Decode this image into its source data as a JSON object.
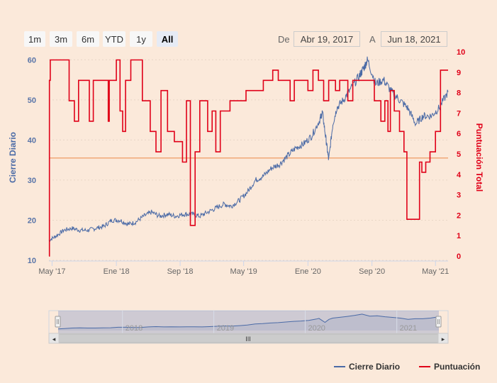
{
  "range_selector": {
    "buttons": [
      {
        "label": "1m",
        "active": false
      },
      {
        "label": "3m",
        "active": false
      },
      {
        "label": "6m",
        "active": false
      },
      {
        "label": "YTD",
        "active": false
      },
      {
        "label": "1y",
        "active": false
      },
      {
        "label": "All",
        "active": true
      }
    ],
    "from_label": "De",
    "from_value": "Abr 19, 2017",
    "to_label": "A",
    "to_value": "Jun 18, 2021"
  },
  "navigator": {
    "labels": [
      "2018",
      "2019",
      "2020",
      "2021"
    ],
    "scroll_grip": "III",
    "left_arrow": "◂",
    "right_arrow": "▸"
  },
  "colors": {
    "background": "#fbe9da",
    "price_line": "#4a6aa6",
    "score_line": "#e00018",
    "plot_line": "#f0a878"
  },
  "chart_data": {
    "type": "line",
    "x_axis": {
      "type": "datetime",
      "range": [
        "2017-04-19",
        "2021-06-18"
      ],
      "tick_labels": [
        "May '17",
        "Ene '18",
        "Sep '18",
        "May '19",
        "Ene '20",
        "Sep '20",
        "May '21"
      ]
    },
    "y_axis_left": {
      "title": "Cierre Diario",
      "range": [
        10,
        62
      ],
      "ticks": [
        10,
        20,
        30,
        40,
        50,
        60
      ]
    },
    "y_axis_right": {
      "title": "Puntuación Total",
      "range": [
        0,
        10
      ],
      "ticks": [
        0,
        1,
        2,
        3,
        4,
        5,
        6,
        7,
        8,
        9,
        10
      ]
    },
    "plot_lines": [
      {
        "axis": "right",
        "value": 4.8
      }
    ],
    "legend": {
      "position": "bottom-right"
    },
    "series": [
      {
        "name": "Cierre Diario",
        "axis": "left",
        "points": [
          [
            "2017-04-19",
            15
          ],
          [
            "2017-05-15",
            16
          ],
          [
            "2017-06-15",
            17.5
          ],
          [
            "2017-07-15",
            18
          ],
          [
            "2017-08-15",
            17.5
          ],
          [
            "2017-09-15",
            17.5
          ],
          [
            "2017-10-15",
            18
          ],
          [
            "2017-11-15",
            18.5
          ],
          [
            "2017-12-15",
            20
          ],
          [
            "2018-01-15",
            20
          ],
          [
            "2018-02-15",
            19
          ],
          [
            "2018-03-15",
            19.5
          ],
          [
            "2018-04-15",
            21
          ],
          [
            "2018-05-15",
            22
          ],
          [
            "2018-06-15",
            21
          ],
          [
            "2018-07-15",
            21.5
          ],
          [
            "2018-08-15",
            21
          ],
          [
            "2018-09-15",
            21.5
          ],
          [
            "2018-10-15",
            21.5
          ],
          [
            "2018-11-15",
            21
          ],
          [
            "2018-12-15",
            22
          ],
          [
            "2019-01-15",
            23
          ],
          [
            "2019-02-15",
            24
          ],
          [
            "2019-03-15",
            23.5
          ],
          [
            "2019-04-15",
            25
          ],
          [
            "2019-05-15",
            27
          ],
          [
            "2019-06-15",
            30
          ],
          [
            "2019-07-15",
            31
          ],
          [
            "2019-08-15",
            33
          ],
          [
            "2019-09-15",
            34
          ],
          [
            "2019-10-15",
            36
          ],
          [
            "2019-11-15",
            38
          ],
          [
            "2019-12-15",
            39
          ],
          [
            "2020-01-15",
            41
          ],
          [
            "2020-02-15",
            45
          ],
          [
            "2020-02-25",
            47
          ],
          [
            "2020-03-10",
            40
          ],
          [
            "2020-03-20",
            35
          ],
          [
            "2020-04-05",
            44
          ],
          [
            "2020-04-20",
            48
          ],
          [
            "2020-05-15",
            50
          ],
          [
            "2020-06-15",
            53
          ],
          [
            "2020-07-15",
            56
          ],
          [
            "2020-08-01",
            58
          ],
          [
            "2020-08-15",
            60
          ],
          [
            "2020-09-15",
            54
          ],
          [
            "2020-10-15",
            55
          ],
          [
            "2020-11-15",
            52
          ],
          [
            "2020-12-15",
            50
          ],
          [
            "2021-01-15",
            48
          ],
          [
            "2021-02-15",
            44
          ],
          [
            "2021-03-15",
            46
          ],
          [
            "2021-04-15",
            46
          ],
          [
            "2021-05-15",
            48
          ],
          [
            "2021-06-18",
            52
          ]
        ]
      },
      {
        "name": "Puntuación",
        "axis": "right",
        "step": true,
        "points": [
          [
            "2017-04-19",
            0
          ],
          [
            "2017-04-21",
            8.6
          ],
          [
            "2017-04-24",
            9.6
          ],
          [
            "2017-07-05",
            7.6
          ],
          [
            "2017-07-25",
            6.6
          ],
          [
            "2017-08-10",
            8.6
          ],
          [
            "2017-09-20",
            6.6
          ],
          [
            "2017-10-05",
            8.6
          ],
          [
            "2017-12-01",
            6.6
          ],
          [
            "2017-12-05",
            8.6
          ],
          [
            "2018-01-01",
            9.6
          ],
          [
            "2018-01-15",
            7.1
          ],
          [
            "2018-01-25",
            6.1
          ],
          [
            "2018-02-05",
            8.6
          ],
          [
            "2018-02-25",
            9.6
          ],
          [
            "2018-04-10",
            7.6
          ],
          [
            "2018-05-10",
            6.1
          ],
          [
            "2018-06-01",
            5.1
          ],
          [
            "2018-06-20",
            8.1
          ],
          [
            "2018-07-15",
            6.1
          ],
          [
            "2018-08-10",
            5.6
          ],
          [
            "2018-09-10",
            4.6
          ],
          [
            "2018-09-25",
            7.6
          ],
          [
            "2018-10-10",
            1.5
          ],
          [
            "2018-10-28",
            5.1
          ],
          [
            "2018-11-15",
            7.6
          ],
          [
            "2018-12-15",
            6.1
          ],
          [
            "2019-01-01",
            7.1
          ],
          [
            "2019-01-15",
            5.1
          ],
          [
            "2019-02-01",
            7.1
          ],
          [
            "2019-03-10",
            7.6
          ],
          [
            "2019-05-01",
            7.6
          ],
          [
            "2019-05-10",
            8.1
          ],
          [
            "2019-07-15",
            8.6
          ],
          [
            "2019-08-20",
            9.1
          ],
          [
            "2019-09-10",
            8.6
          ],
          [
            "2019-10-25",
            7.6
          ],
          [
            "2019-11-10",
            8.6
          ],
          [
            "2020-01-01",
            8.1
          ],
          [
            "2020-01-20",
            9.1
          ],
          [
            "2020-02-10",
            8.6
          ],
          [
            "2020-03-01",
            7.6
          ],
          [
            "2020-03-20",
            8.6
          ],
          [
            "2020-04-15",
            8.1
          ],
          [
            "2020-05-01",
            8.6
          ],
          [
            "2020-06-01",
            7.6
          ],
          [
            "2020-06-20",
            8.6
          ],
          [
            "2020-09-10",
            7.6
          ],
          [
            "2020-10-05",
            6.6
          ],
          [
            "2020-10-20",
            7.6
          ],
          [
            "2020-11-01",
            6.1
          ],
          [
            "2020-11-10",
            8.1
          ],
          [
            "2020-11-25",
            7.1
          ],
          [
            "2020-12-15",
            6.1
          ],
          [
            "2021-01-01",
            5.1
          ],
          [
            "2021-01-12",
            1.8
          ],
          [
            "2021-03-01",
            4.6
          ],
          [
            "2021-03-10",
            4.1
          ],
          [
            "2021-03-25",
            4.6
          ],
          [
            "2021-04-10",
            5.1
          ],
          [
            "2021-05-01",
            6.1
          ],
          [
            "2021-05-20",
            9.1
          ],
          [
            "2021-06-18",
            9.1
          ]
        ]
      }
    ]
  }
}
